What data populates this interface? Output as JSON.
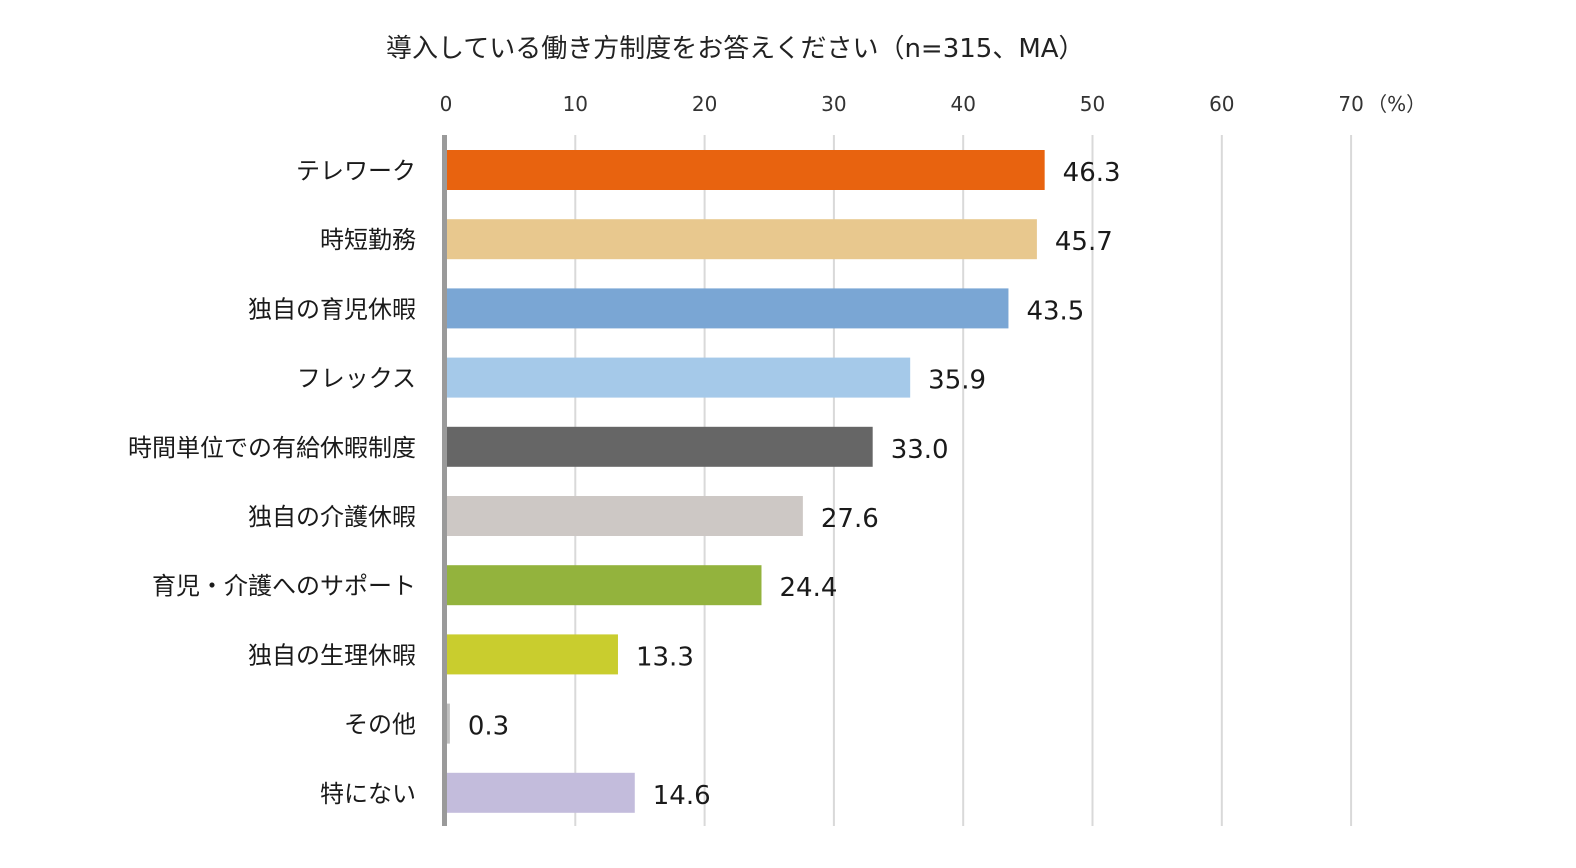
{
  "chart_data": {
    "type": "bar",
    "orientation": "horizontal",
    "title": "導入している働き方制度をお答えください（n=315、MA）",
    "unit_label": "（%）",
    "xlim": [
      0,
      70
    ],
    "x_ticks": [
      0,
      10,
      20,
      30,
      40,
      50,
      60,
      70
    ],
    "grid": true,
    "categories": [
      "テレワーク",
      "時短勤務",
      "独自の育児休暇",
      "フレックス",
      "時間単位での有給休暇制度",
      "独自の介護休暇",
      "育児・介護へのサポート",
      "独自の生理休暇",
      "その他",
      "特にない"
    ],
    "values": [
      46.3,
      45.7,
      43.5,
      35.9,
      33.0,
      27.6,
      24.4,
      13.3,
      0.3,
      14.6
    ],
    "value_labels": [
      "46.3",
      "45.7",
      "43.5",
      "35.9",
      "33.0",
      "27.6",
      "24.4",
      "13.3",
      "0.3",
      "14.6"
    ],
    "colors": [
      "#e8630f",
      "#e8c88e",
      "#7aa6d4",
      "#a5c9e9",
      "#666666",
      "#cdc8c5",
      "#93b33d",
      "#c9cd2e",
      "#bfbfbf",
      "#c3bcdc"
    ]
  }
}
